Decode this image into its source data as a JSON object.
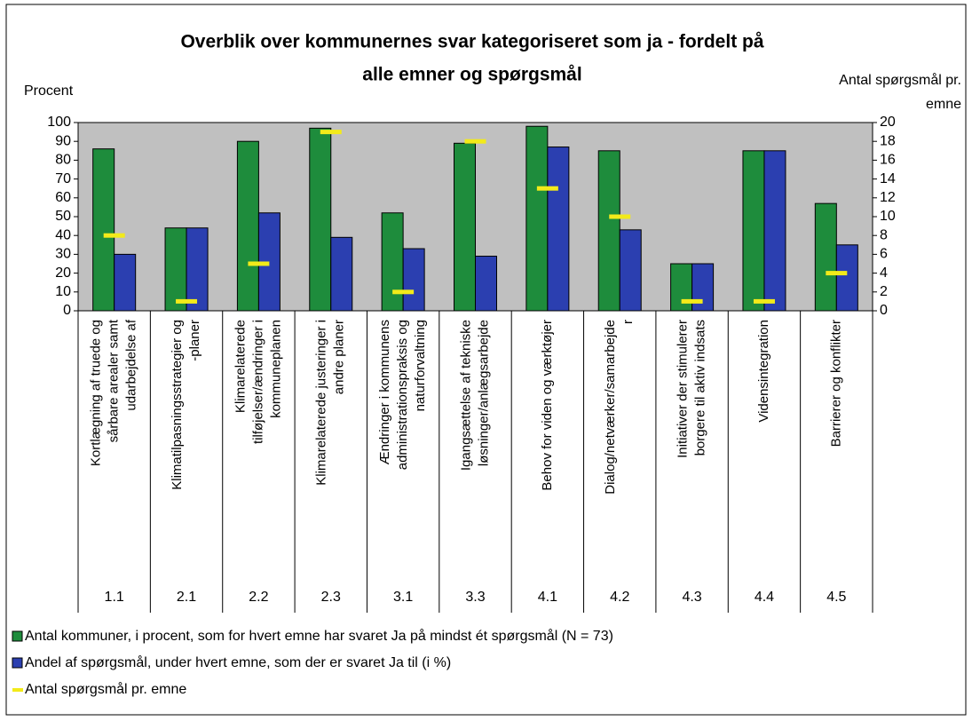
{
  "chart_data": {
    "type": "bar",
    "title": [
      "Overblik over kommunernes svar kategoriseret som ja - fordelt på",
      "alle emner og spørgsmål"
    ],
    "ylabel": "Procent",
    "y2label": [
      "Antal spørgsmål pr.",
      "emne"
    ],
    "categories": [
      [
        "Kortlægning af truede og",
        "sårbare arealer samt",
        "udarbejdelse af"
      ],
      [
        "Klimatilpasningsstrategier og",
        "-planer"
      ],
      [
        "Klimarelaterede",
        "tilføjelser/ændringer i",
        "kommuneplanen"
      ],
      [
        "Klimarelaterede justeringer i",
        "andre planer"
      ],
      [
        "Ændringer i kommunens",
        "administrationspraksis og",
        "naturforvaltning"
      ],
      [
        "Igangsættelse af tekniske",
        "løsninger/anlægsarbejde"
      ],
      [
        "Behov for viden og værktøjer"
      ],
      [
        "Dialog/netværker/samarbejde",
        "r"
      ],
      [
        "Initiativer der stimulerer",
        "borgere til aktiv indsats"
      ],
      [
        "Vidensintegration"
      ],
      [
        "Barrierer og konflikter"
      ]
    ],
    "codes": [
      "1.1",
      "2.1",
      "2.2",
      "2.3",
      "3.1",
      "3.3",
      "4.1",
      "4.2",
      "4.3",
      "4.4",
      "4.5"
    ],
    "series": [
      {
        "name": "Antal kommuner, i procent, som for hvert emne har svaret Ja på mindst ét spørgsmål (N = 73)",
        "color": "#1e8c3c",
        "values": [
          86,
          44,
          90,
          97,
          52,
          89,
          98,
          85,
          25,
          85,
          57
        ]
      },
      {
        "name": "Andel af spørgsmål, under hvert emne, som der er svaret Ja til (i %)",
        "color": "#2b3fb0",
        "values": [
          30,
          44,
          52,
          39,
          33,
          29,
          87,
          43,
          25,
          85,
          35
        ]
      },
      {
        "name": "Antal spørgsmål pr. emne",
        "color": "#f2ea1a",
        "axis": "y2",
        "marker": "dash",
        "values": [
          8,
          1,
          5,
          19,
          2,
          18,
          13,
          10,
          1,
          1,
          4
        ]
      }
    ],
    "ylim": [
      0,
      100
    ],
    "yticks": [
      0,
      10,
      20,
      30,
      40,
      50,
      60,
      70,
      80,
      90,
      100
    ],
    "y2lim": [
      0,
      20
    ],
    "y2ticks": [
      0,
      2,
      4,
      6,
      8,
      10,
      12,
      14,
      16,
      18,
      20
    ],
    "grid": false
  }
}
